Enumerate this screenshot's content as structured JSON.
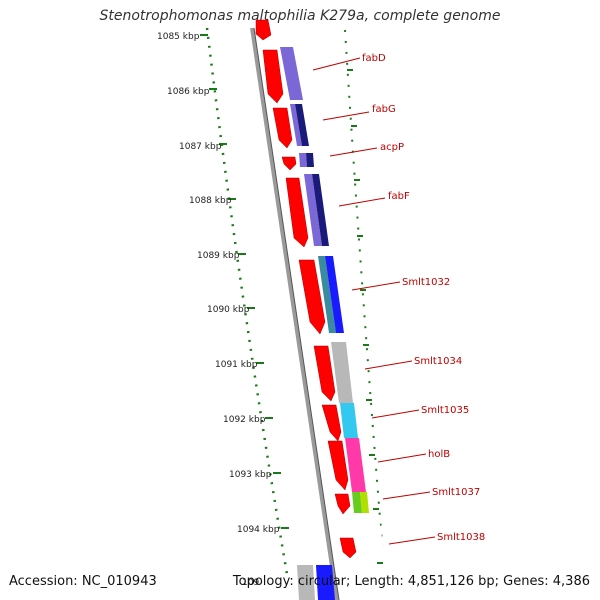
{
  "title": "Stenotrophomonas maltophilia K279a, complete genome",
  "accession": "Accession: NC_010943",
  "summary": "Topology: circular; Length: 4,851,126 bp; Genes: 4,386",
  "kbp_labels": [
    "1085 kbp",
    "1086 kbp",
    "1087 kbp",
    "1088 kbp",
    "1089 kbp",
    "1090 kbp",
    "1091 kbp",
    "1092 kbp",
    "1093 kbp",
    "1094 kbp",
    "109"
  ],
  "genes": [
    "fabD",
    "fabG",
    "acpP",
    "fabF",
    "Smlt1032",
    "Smlt1034",
    "Smlt1035",
    "holB",
    "Smlt1037",
    "Smlt1038"
  ],
  "colors": {
    "gene_red": "#ff0000",
    "label_red": "#c00000",
    "tick_green": "#1a7a1a",
    "backbone": "#888888",
    "cog_purple": "#7b68d6",
    "cog_navy": "#1a1a7a",
    "cog_blue": "#1a1aff",
    "cog_teal": "#3a8aa0",
    "cog_grey": "#b8b8b8",
    "cog_cyan": "#33c8f0",
    "cog_pink": "#ff3aa8",
    "cog_green": "#66cc22"
  }
}
